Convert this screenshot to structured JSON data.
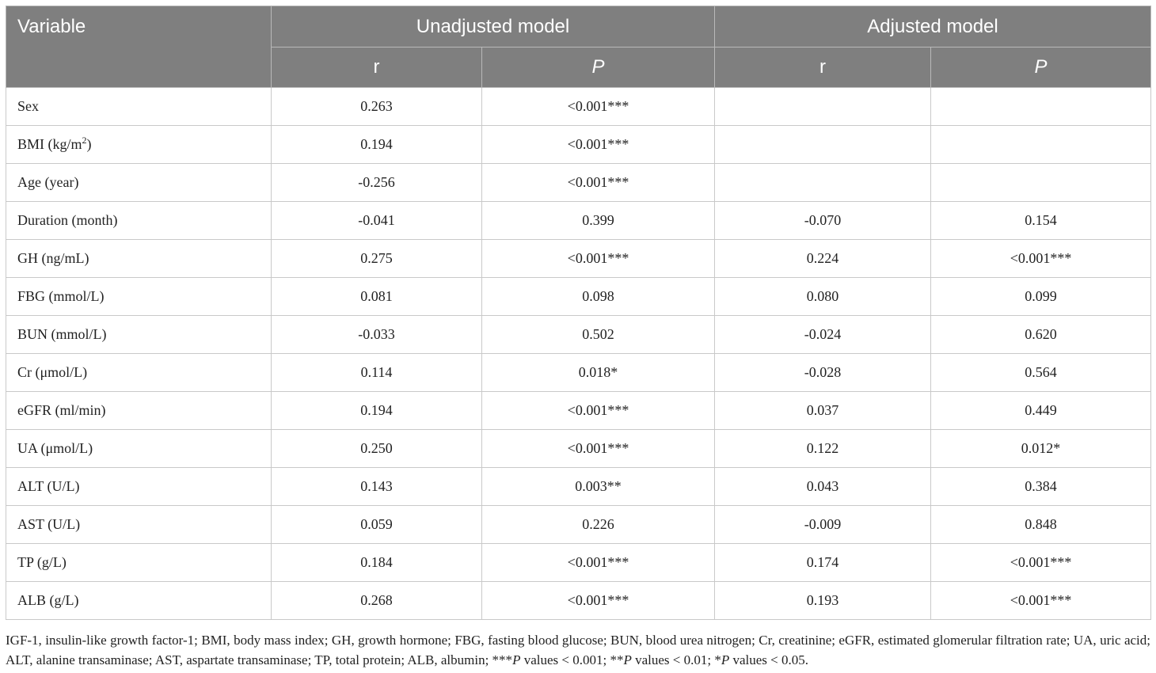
{
  "header": {
    "variable": "Variable",
    "unadjusted": "Unadjusted model",
    "adjusted": "Adjusted model",
    "r": "r",
    "p": "P"
  },
  "rows": [
    {
      "var": "Sex",
      "ur": "0.263",
      "up": "<0.001***",
      "ar": "",
      "ap": ""
    },
    {
      "var": "BMI (kg/m",
      "sup": "2",
      "var_after": ")",
      "ur": "0.194",
      "up": "<0.001***",
      "ar": "",
      "ap": ""
    },
    {
      "var": "Age (year)",
      "ur": "-0.256",
      "up": "<0.001***",
      "ar": "",
      "ap": ""
    },
    {
      "var": "Duration (month)",
      "ur": "-0.041",
      "up": "0.399",
      "ar": "-0.070",
      "ap": "0.154"
    },
    {
      "var": "GH (ng/mL)",
      "ur": "0.275",
      "up": "<0.001***",
      "ar": "0.224",
      "ap": "<0.001***"
    },
    {
      "var": "FBG (mmol/L)",
      "ur": "0.081",
      "up": "0.098",
      "ar": "0.080",
      "ap": "0.099"
    },
    {
      "var": "BUN (mmol/L)",
      "ur": "-0.033",
      "up": "0.502",
      "ar": "-0.024",
      "ap": "0.620"
    },
    {
      "var": "Cr (μmol/L)",
      "ur": "0.114",
      "up": "0.018*",
      "ar": "-0.028",
      "ap": "0.564"
    },
    {
      "var": "eGFR (ml/min)",
      "ur": "0.194",
      "up": "<0.001***",
      "ar": "0.037",
      "ap": "0.449"
    },
    {
      "var": "UA (μmol/L)",
      "ur": "0.250",
      "up": "<0.001***",
      "ar": "0.122",
      "ap": "0.012*"
    },
    {
      "var": "ALT (U/L)",
      "ur": "0.143",
      "up": "0.003**",
      "ar": "0.043",
      "ap": "0.384"
    },
    {
      "var": "AST (U/L)",
      "ur": "0.059",
      "up": "0.226",
      "ar": "-0.009",
      "ap": "0.848"
    },
    {
      "var": "TP (g/L)",
      "ur": "0.184",
      "up": "<0.001***",
      "ar": "0.174",
      "ap": "<0.001***"
    },
    {
      "var": "ALB (g/L)",
      "ur": "0.268",
      "up": "<0.001***",
      "ar": "0.193",
      "ap": "<0.001***"
    }
  ],
  "footnote": {
    "text_main": "IGF-1, insulin-like growth factor-1; BMI, body mass index; GH, growth hormone; FBG, fasting blood glucose; BUN, blood urea nitrogen; Cr, creatinine; eGFR, estimated glomerular filtration rate; UA, uric acid; ALT, alanine transaminase; AST, aspartate transaminase; TP, total protein; ALB, albumin; ***",
    "p1": "P",
    "t1": " values < 0.001; **",
    "p2": "P",
    "t2": " values < 0.01; *",
    "p3": "P",
    "t3": " values < 0.05."
  }
}
